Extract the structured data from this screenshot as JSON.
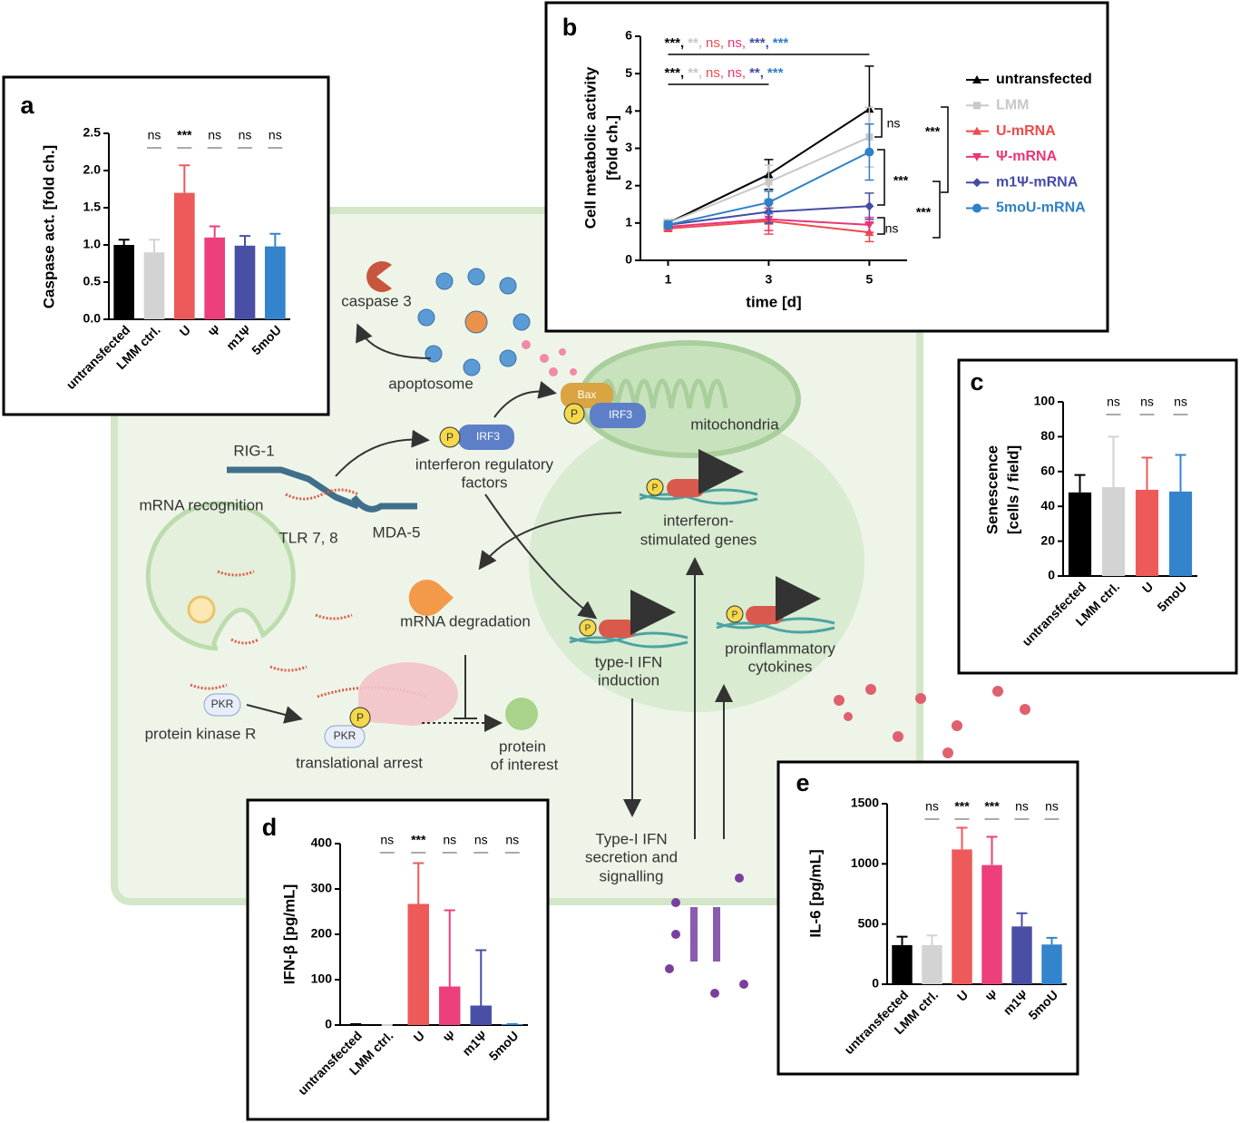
{
  "chart_data": [
    {
      "type": "bar",
      "panel": "a",
      "ylabel": "Caspase act. [fold ch.]",
      "categories": [
        "untransfected",
        "LMM ctrl.",
        "U",
        "Ψ",
        "m1Ψ",
        "5moU"
      ],
      "values": [
        1.0,
        0.9,
        1.7,
        1.1,
        0.99,
        0.98
      ],
      "errors": [
        0.07,
        0.17,
        0.37,
        0.15,
        0.13,
        0.17
      ],
      "colors": [
        "#000000",
        "#d3d3d3",
        "#ee5a5a",
        "#ec3f7c",
        "#4a4fa6",
        "#3384cc"
      ],
      "significance": [
        null,
        "ns",
        "***",
        "ns",
        "ns",
        "ns"
      ],
      "ylim": [
        0,
        2.5
      ],
      "yticks": [
        {
          "value": 0,
          "label": "0.0"
        },
        {
          "value": 0.5,
          "label": "0.5"
        },
        {
          "value": 1,
          "label": "1.0"
        },
        {
          "value": 1.5,
          "label": "1.5"
        },
        {
          "value": 2,
          "label": "2.0"
        },
        {
          "value": 2.5,
          "label": "2.5"
        }
      ]
    },
    {
      "type": "line",
      "panel": "b",
      "ylabel": [
        "Cell metabolic activity",
        "[fold ch.]"
      ],
      "xlabel": "time [d]",
      "x": [
        1,
        3,
        5
      ],
      "xlim": [
        0.45,
        5.75
      ],
      "xticks": [
        1,
        3,
        5
      ],
      "ylim": [
        0,
        6
      ],
      "yticks": [
        0,
        1,
        2,
        3,
        4,
        5,
        6
      ],
      "series": [
        {
          "name": "untransfected",
          "color": "#000000",
          "marker": "triangle",
          "values": [
            1.0,
            2.3,
            4.05
          ],
          "errors": [
            0.1,
            0.4,
            1.15
          ]
        },
        {
          "name": "LMM",
          "color": "#c8c8c8",
          "marker": "square",
          "values": [
            1.0,
            2.1,
            3.3
          ],
          "errors": [
            0.1,
            0.45,
            0.8
          ]
        },
        {
          "name": "U-mRNA",
          "color": "#ee4b4b",
          "marker": "triangle",
          "values": [
            0.85,
            1.05,
            0.75
          ],
          "errors": [
            0.05,
            0.35,
            0.25
          ]
        },
        {
          "name": "Ψ-mRNA",
          "color": "#ea3577",
          "marker": "triangle-down",
          "values": [
            0.9,
            1.1,
            0.95
          ],
          "errors": [
            0.05,
            0.3,
            0.2
          ]
        },
        {
          "name": "m1Ψ-mRNA",
          "color": "#444ba5",
          "marker": "diamond",
          "values": [
            0.95,
            1.3,
            1.45
          ],
          "errors": [
            0.05,
            0.3,
            0.35
          ]
        },
        {
          "name": "5moU-mRNA",
          "color": "#2f80c7",
          "marker": "circle",
          "values": [
            0.95,
            1.55,
            2.9
          ],
          "errors": [
            0.1,
            0.3,
            0.75
          ]
        }
      ],
      "significance_day5": [
        "***,",
        "**,",
        "ns,",
        "ns,",
        "***,",
        "***"
      ],
      "significance_day3": [
        "***,",
        "**,",
        "ns,",
        "ns,",
        "**,",
        "***"
      ],
      "brackets": [
        "ns",
        "***",
        "***",
        "***",
        "ns"
      ]
    },
    {
      "type": "bar",
      "panel": "c",
      "ylabel": [
        "Senescence",
        "[cells / field]"
      ],
      "categories": [
        "untransfected",
        "LMM ctrl.",
        "U",
        "5moU"
      ],
      "values": [
        48,
        51,
        49.5,
        48.5
      ],
      "errors": [
        10,
        29,
        18.5,
        21
      ],
      "colors": [
        "#000000",
        "#d3d3d3",
        "#ee5a5a",
        "#3384cc"
      ],
      "significance": [
        null,
        "ns",
        "ns",
        "ns"
      ],
      "ylim": [
        0,
        100
      ],
      "yticks": [
        0,
        20,
        40,
        60,
        80,
        100
      ]
    },
    {
      "type": "bar",
      "panel": "d",
      "ylabel": "IFN-β [pg/mL]",
      "categories": [
        "untransfected",
        "LMM ctrl.",
        "U",
        "Ψ",
        "m1Ψ",
        "5moU"
      ],
      "values": [
        2,
        0,
        267,
        85,
        43,
        2
      ],
      "errors": [
        0,
        0,
        90,
        168,
        122,
        0
      ],
      "colors": [
        "#000000",
        "#d3d3d3",
        "#ee5a5a",
        "#ec3f7c",
        "#4a4fa6",
        "#3384cc"
      ],
      "significance": [
        null,
        "ns",
        "***",
        "ns",
        "ns",
        "ns"
      ],
      "ylim": [
        0,
        400
      ],
      "yticks": [
        0,
        100,
        200,
        300,
        400
      ]
    },
    {
      "type": "bar",
      "panel": "e",
      "ylabel": "IL-6 [pg/mL]",
      "categories": [
        "untransfected",
        "LMM ctrl.",
        "U",
        "Ψ",
        "m1Ψ",
        "5moU"
      ],
      "values": [
        325,
        325,
        1120,
        990,
        480,
        330
      ],
      "errors": [
        70,
        80,
        180,
        235,
        110,
        55
      ],
      "colors": [
        "#000000",
        "#d3d3d3",
        "#ee5a5a",
        "#ec3f7c",
        "#4a4fa6",
        "#3384cc"
      ],
      "significance": [
        null,
        "ns",
        "***",
        "***",
        "ns",
        "ns"
      ],
      "ylim": [
        0,
        1500
      ],
      "yticks": [
        0,
        500,
        1000,
        1500
      ]
    }
  ],
  "diagram": {
    "caspase": "caspase 3",
    "apoptosome": "apoptosome",
    "mitochondria": "mitochondria",
    "bax": "Bax",
    "irf3": "IRF3",
    "phospho": "P",
    "irf_factors": [
      "interferon regulatory",
      "factors"
    ],
    "rig1": "RIG-1",
    "mrna_recognition": "mRNA recognition",
    "tlr": "TLR 7, 8",
    "mda5": "MDA-5",
    "isg": [
      "interferon-",
      "stimulated genes"
    ],
    "mrna_degradation": "mRNA degradation",
    "ifn_induction": [
      "type-I IFN",
      "induction"
    ],
    "cytokines": [
      "proinflammatory",
      "cytokines"
    ],
    "pkr": "PKR",
    "pkr_name": "protein kinase R",
    "translational_arrest": "translational arrest",
    "protein_of_interest": [
      "protein",
      "of interest"
    ],
    "secretion": [
      "Type-I IFN",
      "secretion and",
      "signalling"
    ]
  }
}
